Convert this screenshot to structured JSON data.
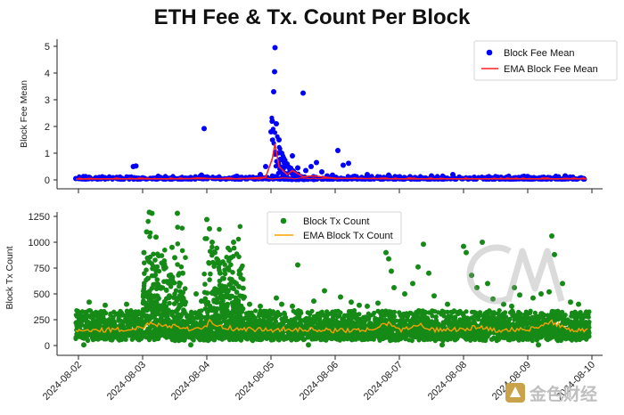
{
  "chart_data": [
    {
      "type": "scatter",
      "title": "ETH Fee & Tx. Count Per Block",
      "ylabel": "Block Fee Mean",
      "xlabel": "",
      "ylim": [
        -0.2,
        5.2
      ],
      "yticks": [
        0,
        1,
        2,
        3,
        4,
        5
      ],
      "grid": false,
      "legend": "top-right",
      "x_range": [
        "2024-08-02",
        "2024-08-10"
      ],
      "series": [
        {
          "name": "Block Fee Mean",
          "kind": "scatter",
          "color": "#0000ff",
          "points": [
            [
              "2024-08-01T23:00",
              0.05
            ],
            [
              "2024-08-02T03:00",
              0.06
            ],
            [
              "2024-08-02T07:00",
              0.07
            ],
            [
              "2024-08-02T11:00",
              0.06
            ],
            [
              "2024-08-02T15:00",
              0.08
            ],
            [
              "2024-08-02T19:00",
              0.1
            ],
            [
              "2024-08-02T20:30",
              0.5
            ],
            [
              "2024-08-02T21:30",
              0.52
            ],
            [
              "2024-08-03T00:00",
              0.08
            ],
            [
              "2024-08-03T06:00",
              0.07
            ],
            [
              "2024-08-03T12:00",
              0.06
            ],
            [
              "2024-08-03T18:00",
              0.09
            ],
            [
              "2024-08-03T22:00",
              0.18
            ],
            [
              "2024-08-03T23:00",
              1.92
            ],
            [
              "2024-08-04T04:00",
              0.08
            ],
            [
              "2024-08-04T10:00",
              0.07
            ],
            [
              "2024-08-04T16:00",
              0.1
            ],
            [
              "2024-08-04T20:00",
              0.2
            ],
            [
              "2024-08-04T22:00",
              0.5
            ],
            [
              "2024-08-05T00:00",
              1.8
            ],
            [
              "2024-08-05T00:30",
              2.2
            ],
            [
              "2024-08-05T01:00",
              3.3
            ],
            [
              "2024-08-05T01:20",
              4.05
            ],
            [
              "2024-08-05T01:30",
              4.95
            ],
            [
              "2024-08-05T02:00",
              2.1
            ],
            [
              "2024-08-05T03:00",
              1.5
            ],
            [
              "2024-08-05T04:00",
              1.0
            ],
            [
              "2024-08-05T06:00",
              0.6
            ],
            [
              "2024-08-05T08:00",
              0.9
            ],
            [
              "2024-08-05T10:00",
              0.45
            ],
            [
              "2024-08-05T13:00",
              0.35
            ],
            [
              "2024-08-05T15:00",
              0.5
            ],
            [
              "2024-08-05T17:00",
              0.65
            ],
            [
              "2024-08-05T19:00",
              0.3
            ],
            [
              "2024-08-05T21:00",
              0.15
            ],
            [
              "2024-08-05T23:00",
              0.18
            ],
            [
              "2024-08-06T01:00",
              1.1
            ],
            [
              "2024-08-06T03:00",
              0.55
            ],
            [
              "2024-08-06T05:00",
              0.62
            ],
            [
              "2024-08-06T12:00",
              0.2
            ],
            [
              "2024-08-06T20:00",
              0.18
            ],
            [
              "2024-08-07T04:00",
              0.12
            ],
            [
              "2024-08-07T12:00",
              0.15
            ],
            [
              "2024-08-07T20:00",
              0.2
            ],
            [
              "2024-08-08T04:00",
              0.1
            ],
            [
              "2024-08-08T14:00",
              0.1
            ],
            [
              "2024-08-08T22:00",
              0.12
            ],
            [
              "2024-08-09T06:00",
              0.1
            ],
            [
              "2024-08-09T14:00",
              0.15
            ],
            [
              "2024-08-09T20:00",
              0.08
            ],
            [
              "2024-08-05T12:00",
              3.25
            ]
          ]
        },
        {
          "name": "EMA Block Fee Mean",
          "kind": "line",
          "color": "#ff2020",
          "points": [
            [
              "2024-08-01T23:00",
              0.03
            ],
            [
              "2024-08-02T12:00",
              0.04
            ],
            [
              "2024-08-03T00:00",
              0.04
            ],
            [
              "2024-08-03T12:00",
              0.04
            ],
            [
              "2024-08-04T00:00",
              0.05
            ],
            [
              "2024-08-04T12:00",
              0.04
            ],
            [
              "2024-08-04T22:00",
              0.1
            ],
            [
              "2024-08-05T00:30",
              0.8
            ],
            [
              "2024-08-05T01:30",
              1.35
            ],
            [
              "2024-08-05T03:00",
              0.5
            ],
            [
              "2024-08-05T06:00",
              0.2
            ],
            [
              "2024-08-05T08:00",
              0.35
            ],
            [
              "2024-08-05T12:00",
              0.12
            ],
            [
              "2024-08-05T16:00",
              0.15
            ],
            [
              "2024-08-06T00:00",
              0.06
            ],
            [
              "2024-08-06T12:00",
              0.05
            ],
            [
              "2024-08-07T00:00",
              0.04
            ],
            [
              "2024-08-08T00:00",
              0.04
            ],
            [
              "2024-08-09T00:00",
              0.04
            ],
            [
              "2024-08-09T22:00",
              0.04
            ]
          ]
        }
      ]
    },
    {
      "type": "scatter",
      "title": "",
      "ylabel": "Block Tx Count",
      "xlabel": "",
      "ylim": [
        -20,
        1320
      ],
      "yticks": [
        0,
        250,
        500,
        750,
        1000,
        1250
      ],
      "grid": false,
      "legend": "top-center",
      "x_range": [
        "2024-08-02",
        "2024-08-10"
      ],
      "xtick_labels": [
        "2024-08-02",
        "2024-08-03",
        "2024-08-04",
        "2024-08-05",
        "2024-08-06",
        "2024-08-07",
        "2024-08-08",
        "2024-08-09",
        "2024-08-10"
      ],
      "series": [
        {
          "name": "Block Tx Count",
          "kind": "scatter",
          "color": "#168a16",
          "band": {
            "low": 30,
            "high": 340,
            "x_start": "2024-08-01T23:00",
            "x_end": "2024-08-09T23:00"
          },
          "points": [
            [
              "2024-08-03T00:30",
              900
            ],
            [
              "2024-08-03T01:30",
              1100
            ],
            [
              "2024-08-03T02:30",
              1290
            ],
            [
              "2024-08-03T03:30",
              1280
            ],
            [
              "2024-08-03T05:00",
              1050
            ],
            [
              "2024-08-03T06:00",
              870
            ],
            [
              "2024-08-03T08:00",
              750
            ],
            [
              "2024-08-03T09:00",
              620
            ],
            [
              "2024-08-03T11:00",
              950
            ],
            [
              "2024-08-03T13:00",
              1280
            ],
            [
              "2024-08-03T15:00",
              700
            ],
            [
              "2024-08-03T04:00",
              760
            ],
            [
              "2024-08-03T07:00",
              560
            ],
            [
              "2024-08-03T10:00",
              480
            ],
            [
              "2024-08-03T02:00",
              650
            ],
            [
              "2024-08-03T12:00",
              850
            ],
            [
              "2024-08-03T14:00",
              600
            ],
            [
              "2024-08-03T16:00",
              420
            ],
            [
              "2024-08-03T20:00",
              500
            ],
            [
              "2024-08-03T22:00",
              430
            ],
            [
              "2024-08-04T00:00",
              1220
            ],
            [
              "2024-08-04T01:00",
              1130
            ],
            [
              "2024-08-04T02:00",
              1000
            ],
            [
              "2024-08-04T03:00",
              900
            ],
            [
              "2024-08-04T04:00",
              800
            ],
            [
              "2024-08-04T06:00",
              650
            ],
            [
              "2024-08-04T08:00",
              750
            ],
            [
              "2024-08-04T10:00",
              1000
            ],
            [
              "2024-08-04T12:00",
              570
            ],
            [
              "2024-08-04T14:00",
              470
            ],
            [
              "2024-08-04T05:00",
              700
            ],
            [
              "2024-08-04T07:00",
              560
            ],
            [
              "2024-08-04T09:00",
              850
            ],
            [
              "2024-08-04T11:00",
              600
            ],
            [
              "2024-08-04T16:00",
              400
            ],
            [
              "2024-08-04T20:00",
              380
            ],
            [
              "2024-08-05T02:00",
              460
            ],
            [
              "2024-08-05T04:00",
              400
            ],
            [
              "2024-08-05T10:00",
              780
            ],
            [
              "2024-08-05T16:00",
              430
            ],
            [
              "2024-08-05T20:00",
              530
            ],
            [
              "2024-08-06T02:00",
              470
            ],
            [
              "2024-08-06T06:00",
              420
            ],
            [
              "2024-08-06T12:00",
              380
            ],
            [
              "2024-08-06T16:00",
              410
            ],
            [
              "2024-08-06T19:00",
              900
            ],
            [
              "2024-08-06T20:00",
              840
            ],
            [
              "2024-08-06T21:00",
              720
            ],
            [
              "2024-08-06T22:00",
              560
            ],
            [
              "2024-08-07T02:00",
              500
            ],
            [
              "2024-08-07T05:00",
              600
            ],
            [
              "2024-08-07T07:00",
              760
            ],
            [
              "2024-08-07T09:00",
              980
            ],
            [
              "2024-08-07T11:00",
              700
            ],
            [
              "2024-08-07T13:00",
              480
            ],
            [
              "2024-08-07T18:00",
              400
            ],
            [
              "2024-08-08T00:00",
              960
            ],
            [
              "2024-08-08T01:00",
              900
            ],
            [
              "2024-08-08T03:00",
              680
            ],
            [
              "2024-08-08T05:00",
              560
            ],
            [
              "2024-08-08T07:00",
              1000
            ],
            [
              "2024-08-08T09:00",
              600
            ],
            [
              "2024-08-08T11:00",
              450
            ],
            [
              "2024-08-08T15:00",
              400
            ],
            [
              "2024-08-08T19:00",
              560
            ],
            [
              "2024-08-08T21:00",
              490
            ],
            [
              "2024-08-09T02:00",
              460
            ],
            [
              "2024-08-09T05:00",
              500
            ],
            [
              "2024-08-09T08:00",
              520
            ],
            [
              "2024-08-09T09:00",
              1060
            ],
            [
              "2024-08-09T10:00",
              880
            ],
            [
              "2024-08-09T13:00",
              600
            ],
            [
              "2024-08-09T16:00",
              420
            ],
            [
              "2024-08-09T19:00",
              400
            ],
            [
              "2024-08-02T04:00",
              420
            ],
            [
              "2024-08-02T10:00",
              390
            ],
            [
              "2024-08-02T18:00",
              400
            ],
            [
              "2024-08-05T08:00",
              380
            ],
            [
              "2024-08-06T09:00",
              390
            ],
            [
              "2024-08-08T18:00",
              380
            ],
            [
              "2024-08-02T02:00",
              6
            ],
            [
              "2024-08-03T18:00",
              6
            ],
            [
              "2024-08-05T14:00",
              6
            ],
            [
              "2024-08-07T16:00",
              6
            ],
            [
              "2024-08-09T04:00",
              6
            ]
          ]
        },
        {
          "name": "EMA Block Tx Count",
          "kind": "line",
          "color": "#f5a200",
          "points": [
            [
              "2024-08-01T23:00",
              150
            ],
            [
              "2024-08-02T06:00",
              145
            ],
            [
              "2024-08-02T12:00",
              155
            ],
            [
              "2024-08-02T18:00",
              150
            ],
            [
              "2024-08-03T00:00",
              175
            ],
            [
              "2024-08-03T03:00",
              230
            ],
            [
              "2024-08-03T06:00",
              200
            ],
            [
              "2024-08-03T12:00",
              190
            ],
            [
              "2024-08-03T18:00",
              160
            ],
            [
              "2024-08-04T00:00",
              180
            ],
            [
              "2024-08-04T01:00",
              260
            ],
            [
              "2024-08-04T04:00",
              190
            ],
            [
              "2024-08-04T08:00",
              170
            ],
            [
              "2024-08-04T12:00",
              160
            ],
            [
              "2024-08-04T18:00",
              155
            ],
            [
              "2024-08-05T00:00",
              150
            ],
            [
              "2024-08-05T06:00",
              160
            ],
            [
              "2024-08-05T12:00",
              155
            ],
            [
              "2024-08-05T18:00",
              150
            ],
            [
              "2024-08-06T00:00",
              145
            ],
            [
              "2024-08-06T12:00",
              150
            ],
            [
              "2024-08-06T20:00",
              210
            ],
            [
              "2024-08-07T00:00",
              150
            ],
            [
              "2024-08-07T08:00",
              200
            ],
            [
              "2024-08-07T12:00",
              150
            ],
            [
              "2024-08-08T00:00",
              160
            ],
            [
              "2024-08-08T06:00",
              180
            ],
            [
              "2024-08-08T12:00",
              150
            ],
            [
              "2024-08-09T00:00",
              155
            ],
            [
              "2024-08-09T09:00",
              230
            ],
            [
              "2024-08-09T14:00",
              160
            ],
            [
              "2024-08-09T23:00",
              140
            ]
          ]
        }
      ]
    }
  ],
  "watermark": {
    "logo": "CM",
    "brand_text": "金色财经"
  },
  "colors": {
    "axis": "#222222",
    "background": "#ffffff"
  }
}
